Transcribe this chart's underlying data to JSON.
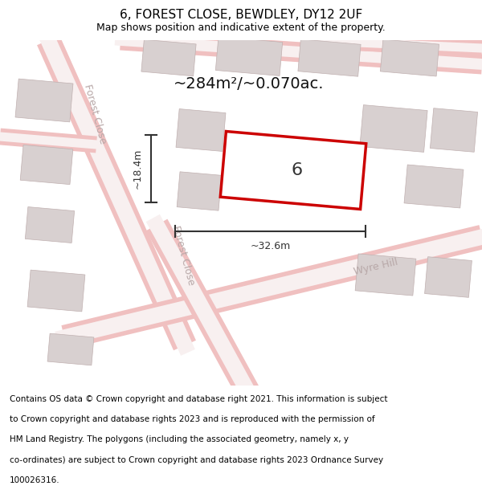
{
  "title": "6, FOREST CLOSE, BEWDLEY, DY12 2UF",
  "subtitle": "Map shows position and indicative extent of the property.",
  "area_text": "~284m²/~0.070ac.",
  "width_label": "~32.6m",
  "height_label": "~18.4m",
  "number_label": "6",
  "footer_lines": [
    "Contains OS data © Crown copyright and database right 2021. This information is subject",
    "to Crown copyright and database rights 2023 and is reproduced with the permission of",
    "HM Land Registry. The polygons (including the associated geometry, namely x, y",
    "co-ordinates) are subject to Crown copyright and database rights 2023 Ordnance Survey",
    "100026316."
  ],
  "map_bg": "#ede8e8",
  "road_color": "#f0c0c0",
  "road_fill": "#f8f0f0",
  "building_color": "#d8d0d0",
  "building_edge": "#c0b0b0",
  "plot_color": "#cc0000",
  "plot_fill": "#ffffff",
  "street_label_color": "#b8a8a8",
  "dim_color": "#333333",
  "title_color": "#000000",
  "footer_color": "#000000",
  "title_fontsize": 11,
  "subtitle_fontsize": 9,
  "footer_fontsize": 7.5,
  "area_fontsize": 14,
  "street_fontsize": 9,
  "number_fontsize": 16
}
